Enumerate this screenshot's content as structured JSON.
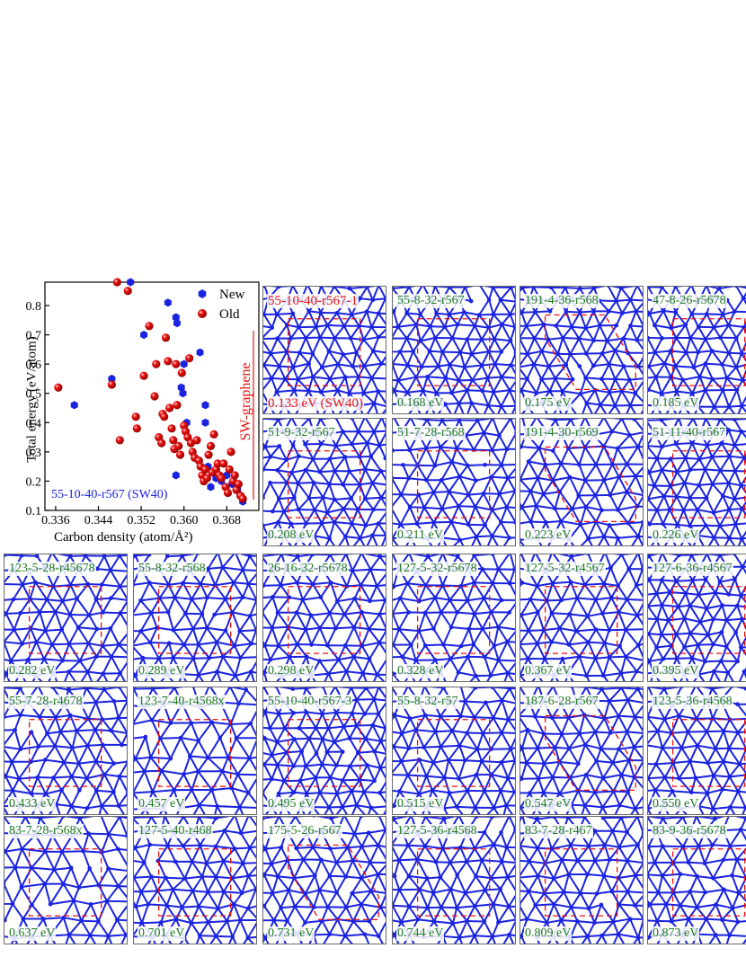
{
  "chart_data": {
    "type": "scatter",
    "title": "",
    "xlabel": "Carbon density (atom/Å²)",
    "ylabel": "Total energy (eV/atom)",
    "xlim": [
      0.334,
      0.374
    ],
    "ylim": [
      0.1,
      0.88
    ],
    "xticks": [
      "0.336",
      "0.344",
      "0.352",
      "0.360",
      "0.368"
    ],
    "yticks": [
      "0.1",
      "0.2",
      "0.3",
      "0.4",
      "0.5",
      "0.6",
      "0.7",
      "0.8"
    ],
    "legend_position": "top-right",
    "annotations": [
      "SW-graphene",
      "55-10-40-r567 (SW40)"
    ],
    "series": [
      {
        "name": "New",
        "color": "#1a23e0",
        "marker": "hexagon",
        "points": [
          [
            0.3395,
            0.46
          ],
          [
            0.3465,
            0.55
          ],
          [
            0.35,
            0.88
          ],
          [
            0.3525,
            0.7
          ],
          [
            0.357,
            0.81
          ],
          [
            0.3585,
            0.76
          ],
          [
            0.3587,
            0.74
          ],
          [
            0.36,
            0.6
          ],
          [
            0.3595,
            0.52
          ],
          [
            0.3598,
            0.5
          ],
          [
            0.3605,
            0.4
          ],
          [
            0.3585,
            0.22
          ],
          [
            0.363,
            0.64
          ],
          [
            0.364,
            0.46
          ],
          [
            0.364,
            0.4
          ],
          [
            0.3645,
            0.25
          ],
          [
            0.365,
            0.18
          ],
          [
            0.366,
            0.21
          ],
          [
            0.367,
            0.2
          ],
          [
            0.368,
            0.22
          ],
          [
            0.369,
            0.19
          ],
          [
            0.37,
            0.17
          ],
          [
            0.371,
            0.13
          ],
          [
            0.3705,
            0.15
          ]
        ]
      },
      {
        "name": "Old",
        "color": "#e8110f",
        "marker": "sphere",
        "points": [
          [
            0.3365,
            0.52
          ],
          [
            0.3475,
            0.88
          ],
          [
            0.3465,
            0.53
          ],
          [
            0.348,
            0.34
          ],
          [
            0.3495,
            0.85
          ],
          [
            0.351,
            0.42
          ],
          [
            0.3512,
            0.38
          ],
          [
            0.3525,
            0.56
          ],
          [
            0.3535,
            0.73
          ],
          [
            0.3545,
            0.49
          ],
          [
            0.3548,
            0.6
          ],
          [
            0.3553,
            0.35
          ],
          [
            0.3558,
            0.33
          ],
          [
            0.356,
            0.43
          ],
          [
            0.3563,
            0.42
          ],
          [
            0.3566,
            0.69
          ],
          [
            0.357,
            0.61
          ],
          [
            0.3573,
            0.45
          ],
          [
            0.3577,
            0.38
          ],
          [
            0.358,
            0.34
          ],
          [
            0.3582,
            0.31
          ],
          [
            0.3585,
            0.6
          ],
          [
            0.3587,
            0.46
          ],
          [
            0.359,
            0.32
          ],
          [
            0.3593,
            0.29
          ],
          [
            0.3596,
            0.57
          ],
          [
            0.36,
            0.39
          ],
          [
            0.3603,
            0.37
          ],
          [
            0.3607,
            0.35
          ],
          [
            0.361,
            0.62
          ],
          [
            0.3613,
            0.33
          ],
          [
            0.3616,
            0.3
          ],
          [
            0.362,
            0.28
          ],
          [
            0.3624,
            0.34
          ],
          [
            0.3628,
            0.27
          ],
          [
            0.3631,
            0.25
          ],
          [
            0.3634,
            0.22
          ],
          [
            0.3637,
            0.2
          ],
          [
            0.364,
            0.24
          ],
          [
            0.3643,
            0.21
          ],
          [
            0.3646,
            0.29
          ],
          [
            0.365,
            0.32
          ],
          [
            0.3653,
            0.23
          ],
          [
            0.3656,
            0.36
          ],
          [
            0.366,
            0.24
          ],
          [
            0.3663,
            0.26
          ],
          [
            0.3666,
            0.22
          ],
          [
            0.367,
            0.21
          ],
          [
            0.3674,
            0.26
          ],
          [
            0.3678,
            0.18
          ],
          [
            0.3682,
            0.16
          ],
          [
            0.3685,
            0.24
          ],
          [
            0.3688,
            0.3
          ],
          [
            0.3692,
            0.2
          ],
          [
            0.3695,
            0.22
          ],
          [
            0.3698,
            0.17
          ],
          [
            0.3702,
            0.19
          ],
          [
            0.3706,
            0.15
          ],
          [
            0.371,
            0.14
          ]
        ]
      }
    ]
  },
  "panels": [
    {
      "name": "55-10-40-r567-1",
      "energy": "0.133 eV  (SW40)",
      "highlight": true,
      "cols": 9,
      "rows": 9,
      "box": "rect"
    },
    {
      "name": "55-8-32-r567",
      "energy": "0.168 eV",
      "highlight": false,
      "cols": 9,
      "rows": 9,
      "box": "rect"
    },
    {
      "name": "191-4-36-r568",
      "energy": "0.175 eV",
      "highlight": false,
      "cols": 9,
      "rows": 9,
      "box": "hex"
    },
    {
      "name": "47-8-26-r5678",
      "energy": "0.185 eV",
      "highlight": false,
      "cols": 9,
      "rows": 9,
      "box": "rect"
    },
    {
      "name": "51-9-32-r567",
      "energy": "0.208 eV",
      "highlight": false,
      "cols": 9,
      "rows": 9,
      "box": "rect"
    },
    {
      "name": "51-7-28-r568",
      "energy": "0.211 eV",
      "highlight": false,
      "cols": 8,
      "rows": 8,
      "box": "rect"
    },
    {
      "name": "191-4-30-r569",
      "energy": "0.223 eV",
      "highlight": false,
      "cols": 8,
      "rows": 8,
      "box": "hex"
    },
    {
      "name": "51-11-40-r567",
      "energy": "0.226 eV",
      "highlight": false,
      "cols": 9,
      "rows": 9,
      "box": "rect"
    },
    {
      "name": "123-5-28-r45678",
      "energy": "0.282 eV",
      "highlight": false,
      "cols": 8,
      "rows": 8,
      "box": "rect"
    },
    {
      "name": "55-8-32-r568",
      "energy": "0.289 eV",
      "highlight": false,
      "cols": 8,
      "rows": 8,
      "box": "rect"
    },
    {
      "name": "26-16-32-r5678",
      "energy": "0.298 eV",
      "highlight": false,
      "cols": 8,
      "rows": 8,
      "box": "rect"
    },
    {
      "name": "127-5-32-r5678",
      "energy": "0.328 eV",
      "highlight": false,
      "cols": 8,
      "rows": 8,
      "box": "rect"
    },
    {
      "name": "127-5-32-r4567",
      "energy": "0.367 eV",
      "highlight": false,
      "cols": 8,
      "rows": 8,
      "box": "rect"
    },
    {
      "name": "127-6-36-r4567",
      "energy": "0.395 eV",
      "highlight": false,
      "cols": 9,
      "rows": 9,
      "box": "rect"
    },
    {
      "name": "55-7-28-r4678",
      "energy": "0.433 eV",
      "highlight": false,
      "cols": 8,
      "rows": 8,
      "box": "rect"
    },
    {
      "name": "123-7-40-r4568x",
      "energy": "0.457 eV",
      "highlight": false,
      "cols": 7,
      "rows": 7,
      "box": "rect"
    },
    {
      "name": "55-10-40-r567-3",
      "energy": "0.495 eV",
      "highlight": false,
      "cols": 9,
      "rows": 9,
      "box": "rect"
    },
    {
      "name": "55-8-32-r57",
      "energy": "0.515 eV",
      "highlight": false,
      "cols": 8,
      "rows": 8,
      "box": "rect"
    },
    {
      "name": "187-6-28-r567",
      "energy": "0.547 eV",
      "highlight": false,
      "cols": 8,
      "rows": 8,
      "box": "hex"
    },
    {
      "name": "123-5-36-r4568",
      "energy": "0.550 eV",
      "highlight": false,
      "cols": 8,
      "rows": 8,
      "box": "rect"
    },
    {
      "name": "83-7-28-r568x",
      "energy": "0.637 eV",
      "highlight": false,
      "cols": 7,
      "rows": 7,
      "box": "rect"
    },
    {
      "name": "127-5-40-r468",
      "energy": "0.701 eV",
      "highlight": false,
      "cols": 8,
      "rows": 8,
      "box": "rect"
    },
    {
      "name": "175-5-26-r567",
      "energy": "0.731 eV",
      "highlight": false,
      "cols": 8,
      "rows": 8,
      "box": "hex"
    },
    {
      "name": "127-5-36-r4568",
      "energy": "0.744 eV",
      "highlight": false,
      "cols": 8,
      "rows": 8,
      "box": "rect"
    },
    {
      "name": "83-7-28-r467",
      "energy": "0.809 eV",
      "highlight": false,
      "cols": 8,
      "rows": 8,
      "box": "rect"
    },
    {
      "name": "83-9-36-r5678",
      "energy": "0.873 eV",
      "highlight": false,
      "cols": 8,
      "rows": 8,
      "box": "rect"
    }
  ],
  "colors": {
    "atom": "#1a23e0",
    "bond": "#1a23e0",
    "cell": "#e8110f",
    "label": "#1f7a1f",
    "highlight": "#e8110f",
    "border": "#6a6a6a"
  }
}
